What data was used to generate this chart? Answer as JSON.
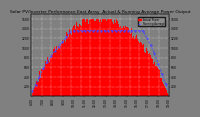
{
  "title": "Solar PV/Inverter Performance East Array  Actual & Running Average Power Output",
  "bg_color": "#808080",
  "plot_bg": "#808080",
  "bar_color": "#ff0000",
  "avg_color": "#4444ff",
  "grid_color": "#ffffff",
  "n_bars": 144,
  "x_labels": [
    "6:00",
    "7:00",
    "8:00",
    "9:00",
    "10:00",
    "11:00",
    "12:00",
    "13:00",
    "14:00",
    "15:00",
    "16:00",
    "17:00",
    "18:00",
    "19:00"
  ],
  "y_labels_left": [
    "200w",
    "400w",
    "600w",
    "800w",
    "1000w",
    "1200w",
    "1400w"
  ],
  "y_labels_right": [
    "200",
    "400",
    "600",
    "800",
    "1000",
    "1200",
    "1400",
    "1600"
  ],
  "legend_labels": [
    "Actual Power",
    "Running Average"
  ],
  "title_fontsize": 3.2,
  "axis_fontsize": 2.2,
  "peak_watts": 1600,
  "ylim_watts": [
    0,
    1700
  ]
}
